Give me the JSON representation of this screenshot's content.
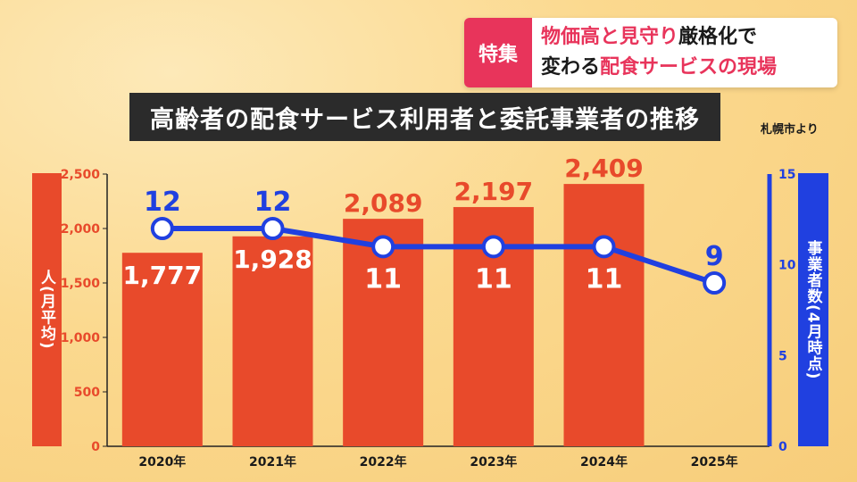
{
  "header": {
    "tag": "特集",
    "line1_accent": "物価高と見守り",
    "line1_rest": "厳格化で",
    "line2_plain": "変わる",
    "line2_accent": "配食サービスの現場"
  },
  "chart_title": "高齢者の配食サービス利用者と委託事業者の推移",
  "source": "札幌市より",
  "colors": {
    "bar": "#e84a2b",
    "line": "#2040e0",
    "left_axis": "#e84a2b",
    "right_axis": "#2040e0"
  },
  "chart_data": {
    "type": "bar",
    "title": "高齢者の配食サービス利用者と委託事業者の推移",
    "categories": [
      "2020年",
      "2021年",
      "2022年",
      "2023年",
      "2024年",
      "2025年"
    ],
    "series": [
      {
        "name": "人(月平均)",
        "type": "bar",
        "axis": "left",
        "values": [
          1777,
          1928,
          2089,
          2197,
          2409,
          null
        ],
        "labels": [
          "1,777",
          "1,928",
          "2,089",
          "2,197",
          "2,409",
          ""
        ]
      },
      {
        "name": "事業者数(4月時点)",
        "type": "line",
        "axis": "right",
        "values": [
          12,
          12,
          11,
          11,
          11,
          9
        ],
        "labels": [
          "12",
          "12",
          "11",
          "11",
          "11",
          "9"
        ]
      }
    ],
    "ylabel_left": "人(月平均)",
    "ylabel_right": "事業者数(4月時点)",
    "ylim_left": [
      0,
      2500
    ],
    "ylim_right": [
      0,
      15
    ],
    "yticks_left": [
      "0",
      "500",
      "1,000",
      "1,500",
      "2,000",
      "2,500"
    ],
    "yticks_right": [
      "0",
      "5",
      "10",
      "15"
    ],
    "grid": false,
    "legend": "none"
  }
}
